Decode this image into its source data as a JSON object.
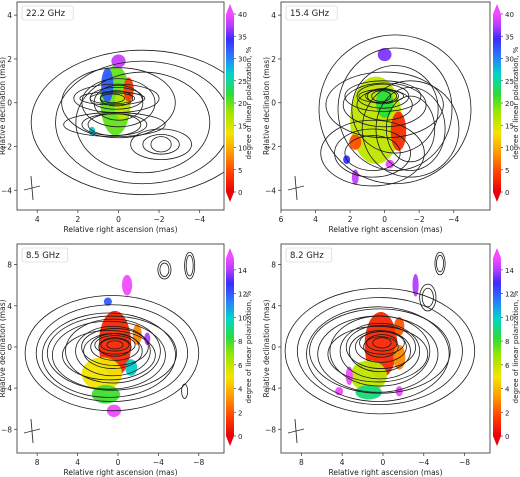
{
  "chart_data": [
    {
      "type": "heatmap",
      "title": "22.2 GHz",
      "xlabel": "Relative right ascension (mas)",
      "ylabel": "Relative declination (mas)",
      "xticks": [
        4,
        2,
        0,
        -2,
        -4
      ],
      "yticks": [
        4,
        2,
        0,
        -2,
        -4
      ],
      "xlim": [
        5,
        -5.2
      ],
      "ylim": [
        -4.9,
        4.6
      ],
      "colorbar": {
        "label": "degree of linear polarization, %",
        "ticks": [
          0,
          5,
          10,
          15,
          20,
          25,
          30,
          35,
          40
        ],
        "range": [
          0,
          40
        ]
      },
      "contours": [
        [
          [
            0.3,
            0.2
          ],
          [
            0.6,
            0.2
          ],
          [
            1.1,
            0.25
          ],
          [
            1.6,
            0.3
          ]
        ],
        [
          [
            0.1,
            0.2
          ],
          [
            0.8,
            0.35
          ],
          [
            1.3,
            0.5
          ],
          [
            2.1,
            0.65
          ]
        ],
        [
          [
            0.0,
            0.0
          ],
          [
            1.2,
            0.8
          ],
          [
            1.8,
            1.1
          ],
          [
            2.8,
            1.6
          ]
        ],
        [
          [
            0.2,
            -1.0
          ],
          [
            1.3,
            0.5
          ],
          [
            1.6,
            0.5
          ],
          [
            2.5,
            0.55
          ]
        ],
        [
          [
            -1.2,
            -0.9
          ],
          [
            3.3,
            2.3
          ],
          [
            4.3,
            2.8
          ],
          [
            5.5,
            3.3
          ]
        ],
        [
          [
            -2.1,
            -1.9
          ],
          [
            0.5,
            0.35
          ],
          [
            0.9,
            0.45
          ],
          [
            1.5,
            0.7
          ]
        ]
      ],
      "polarization_regions": [
        {
          "x": 0.15,
          "y": 0.1,
          "rx": 0.75,
          "ry": 1.6,
          "value": 20
        },
        {
          "x": -0.2,
          "y": -0.1,
          "rx": 0.4,
          "ry": 0.7,
          "value": 16
        },
        {
          "x": 0.55,
          "y": 0.8,
          "rx": 0.3,
          "ry": 0.8,
          "value": 32
        },
        {
          "x": 0.0,
          "y": 1.9,
          "rx": 0.35,
          "ry": 0.3,
          "value": 38
        },
        {
          "x": -0.5,
          "y": 0.6,
          "rx": 0.25,
          "ry": 0.55,
          "value": 4
        },
        {
          "x": 1.3,
          "y": -1.3,
          "rx": 0.15,
          "ry": 0.2,
          "value": 27
        }
      ]
    },
    {
      "type": "heatmap",
      "title": "15.4 GHz",
      "xlabel": "Relative right ascension (mas)",
      "ylabel": "Relative declination (mas)",
      "xticks": [
        6,
        4,
        2,
        0,
        -2,
        -4
      ],
      "yticks": [
        4,
        2,
        0,
        -2,
        -4
      ],
      "xlim": [
        6,
        -6.1
      ],
      "ylim": [
        -4.9,
        4.6
      ],
      "colorbar": {
        "label": "degree of linear polarization, %",
        "ticks": [
          0,
          5,
          10,
          15,
          20,
          25,
          30,
          35,
          40
        ],
        "range": [
          0,
          40
        ]
      },
      "contours": [
        [
          [
            0.2,
            0.3
          ],
          [
            0.55,
            0.25
          ],
          [
            0.9,
            0.3
          ],
          [
            1.3,
            0.3
          ]
        ],
        [
          [
            0.1,
            0.3
          ],
          [
            0.9,
            0.35
          ],
          [
            1.5,
            0.55
          ],
          [
            2.2,
            0.7
          ]
        ],
        [
          [
            0.0,
            -0.1
          ],
          [
            1.6,
            0.7
          ],
          [
            2.4,
            1.0
          ],
          [
            3.4,
            1.5
          ]
        ],
        [
          [
            -0.6,
            -0.3
          ],
          [
            2.5,
            2.0
          ],
          [
            3.3,
            2.8
          ],
          [
            4.4,
            3.4
          ]
        ],
        [
          [
            0.7,
            -2.3
          ],
          [
            1.6,
            0.8
          ],
          [
            2.2,
            1.1
          ],
          [
            3.0,
            1.5
          ]
        ],
        [
          [
            -1.5,
            -1.2
          ],
          [
            1.4,
            1.5
          ],
          [
            2.0,
            1.9
          ],
          [
            2.8,
            2.2
          ]
        ]
      ],
      "polarization_regions": [
        {
          "x": 0.5,
          "y": -0.8,
          "rx": 1.5,
          "ry": 2.0,
          "value": 16
        },
        {
          "x": 0.0,
          "y": 0.0,
          "rx": 0.5,
          "ry": 0.7,
          "value": 22
        },
        {
          "x": -0.8,
          "y": -1.3,
          "rx": 0.45,
          "ry": 0.9,
          "value": 3
        },
        {
          "x": 1.7,
          "y": -1.8,
          "rx": 0.35,
          "ry": 0.35,
          "value": 5
        },
        {
          "x": 0.0,
          "y": 2.2,
          "rx": 0.4,
          "ry": 0.3,
          "value": 36
        },
        {
          "x": 1.7,
          "y": -3.4,
          "rx": 0.2,
          "ry": 0.35,
          "value": 38
        },
        {
          "x": -0.3,
          "y": -2.8,
          "rx": 0.25,
          "ry": 0.2,
          "value": 40
        },
        {
          "x": 2.2,
          "y": -2.6,
          "rx": 0.2,
          "ry": 0.2,
          "value": 34
        }
      ]
    },
    {
      "type": "heatmap",
      "title": "8.5 GHz",
      "xlabel": "Relative right ascension (mas)",
      "ylabel": "Relative declination (mas)",
      "xticks": [
        8,
        4,
        0,
        -4,
        -8
      ],
      "yticks": [
        8,
        4,
        0,
        -4,
        -8
      ],
      "xlim": [
        10,
        -10.5
      ],
      "ylim": [
        -10.3,
        10
      ],
      "colorbar": {
        "label": "degree of linear polarization, %",
        "ticks": [
          0,
          2,
          4,
          6,
          8,
          10,
          12,
          14
        ],
        "range": [
          0,
          15
        ]
      },
      "contours": [
        [
          [
            0.3,
            0.2
          ],
          [
            0.8,
            0.4
          ],
          [
            1.4,
            0.6
          ],
          [
            2.0,
            0.9
          ]
        ],
        [
          [
            0.3,
            0.0
          ],
          [
            1.6,
            0.9
          ],
          [
            2.4,
            1.3
          ],
          [
            3.3,
            1.8
          ]
        ],
        [
          [
            0.5,
            -0.4
          ],
          [
            2.9,
            1.7
          ],
          [
            3.7,
            2.4
          ],
          [
            4.7,
            3.1
          ]
        ],
        [
          [
            0.9,
            -0.8
          ],
          [
            4.6,
            2.4
          ],
          [
            5.6,
            3.3
          ],
          [
            6.6,
            4.1
          ]
        ],
        [
          [
            0.6,
            -0.6
          ],
          [
            6.4,
            3.6
          ],
          [
            7.5,
            4.7
          ],
          [
            8.6,
            5.6
          ]
        ],
        [
          [
            -4.6,
            7.5
          ],
          [
            0.45,
            0.65
          ],
          [
            0.65,
            0.9
          ]
        ],
        [
          [
            -7.1,
            7.9
          ],
          [
            0.35,
            1.0
          ],
          [
            0.5,
            1.3
          ]
        ],
        [
          [
            -6.6,
            -4.3
          ],
          [
            0.3,
            0.7
          ]
        ]
      ],
      "polarization_regions": [
        {
          "x": 0.3,
          "y": 0.3,
          "rx": 1.6,
          "ry": 3.2,
          "value": 1
        },
        {
          "x": 1.6,
          "y": -2.6,
          "rx": 2.0,
          "ry": 1.6,
          "value": 5
        },
        {
          "x": 1.2,
          "y": -4.6,
          "rx": 1.4,
          "ry": 0.9,
          "value": 8
        },
        {
          "x": -1.9,
          "y": 1.2,
          "rx": 0.45,
          "ry": 1.0,
          "value": 3
        },
        {
          "x": 1.0,
          "y": 4.4,
          "rx": 0.4,
          "ry": 0.4,
          "value": 12
        },
        {
          "x": -0.9,
          "y": 6.0,
          "rx": 0.5,
          "ry": 1.0,
          "value": 15
        },
        {
          "x": -2.9,
          "y": 0.8,
          "rx": 0.3,
          "ry": 0.6,
          "value": 14
        },
        {
          "x": 0.4,
          "y": -6.2,
          "rx": 0.7,
          "ry": 0.6,
          "value": 15
        },
        {
          "x": -1.3,
          "y": -2.0,
          "rx": 0.6,
          "ry": 0.8,
          "value": 10
        }
      ]
    },
    {
      "type": "heatmap",
      "title": "8.2 GHz",
      "xlabel": "Relative right ascension (mas)",
      "ylabel": "Relative declination (mas)",
      "xticks": [
        8,
        4,
        0,
        -4,
        -8
      ],
      "yticks": [
        8,
        4,
        0,
        -4,
        -8
      ],
      "xlim": [
        10,
        -10.5
      ],
      "ylim": [
        -10.3,
        10
      ],
      "colorbar": {
        "label": "degree of linear polarization, %",
        "ticks": [
          0,
          2,
          4,
          6,
          8,
          10,
          12,
          14
        ],
        "range": [
          0,
          15
        ]
      },
      "contours": [
        [
          [
            0.1,
            0.4
          ],
          [
            0.9,
            0.5
          ],
          [
            1.5,
            0.8
          ],
          [
            2.2,
            1.1
          ]
        ],
        [
          [
            0.2,
            0.0
          ],
          [
            1.7,
            1.0
          ],
          [
            2.5,
            1.5
          ],
          [
            3.4,
            2.1
          ]
        ],
        [
          [
            0.3,
            -0.4
          ],
          [
            3.0,
            2.0
          ],
          [
            3.9,
            2.7
          ],
          [
            4.9,
            3.4
          ]
        ],
        [
          [
            0.5,
            -0.7
          ],
          [
            4.9,
            2.7
          ],
          [
            5.9,
            3.7
          ],
          [
            7.0,
            4.6
          ]
        ],
        [
          [
            0.3,
            -0.4
          ],
          [
            6.9,
            4.1
          ],
          [
            8.1,
            5.2
          ],
          [
            9.3,
            6.1
          ]
        ],
        [
          [
            -4.4,
            4.8
          ],
          [
            0.55,
            0.9
          ],
          [
            0.8,
            1.3
          ]
        ],
        [
          [
            -5.6,
            8.1
          ],
          [
            0.35,
            0.8
          ],
          [
            0.5,
            1.1
          ]
        ]
      ],
      "polarization_regions": [
        {
          "x": 0.2,
          "y": 0.2,
          "rx": 1.6,
          "ry": 3.2,
          "value": 1
        },
        {
          "x": 1.4,
          "y": -2.8,
          "rx": 1.8,
          "ry": 1.5,
          "value": 6
        },
        {
          "x": -1.6,
          "y": -1.0,
          "rx": 0.6,
          "ry": 1.2,
          "value": 3
        },
        {
          "x": 1.4,
          "y": -4.4,
          "rx": 1.3,
          "ry": 0.7,
          "value": 9
        },
        {
          "x": 3.3,
          "y": -2.8,
          "rx": 0.35,
          "ry": 0.9,
          "value": 15
        },
        {
          "x": 4.3,
          "y": -4.3,
          "rx": 0.4,
          "ry": 0.4,
          "value": 15
        },
        {
          "x": -1.6,
          "y": -4.3,
          "rx": 0.35,
          "ry": 0.5,
          "value": 15
        },
        {
          "x": -3.2,
          "y": 6.0,
          "rx": 0.3,
          "ry": 1.1,
          "value": 14
        },
        {
          "x": -1.6,
          "y": 2.0,
          "rx": 0.5,
          "ry": 0.9,
          "value": 2
        }
      ]
    }
  ]
}
